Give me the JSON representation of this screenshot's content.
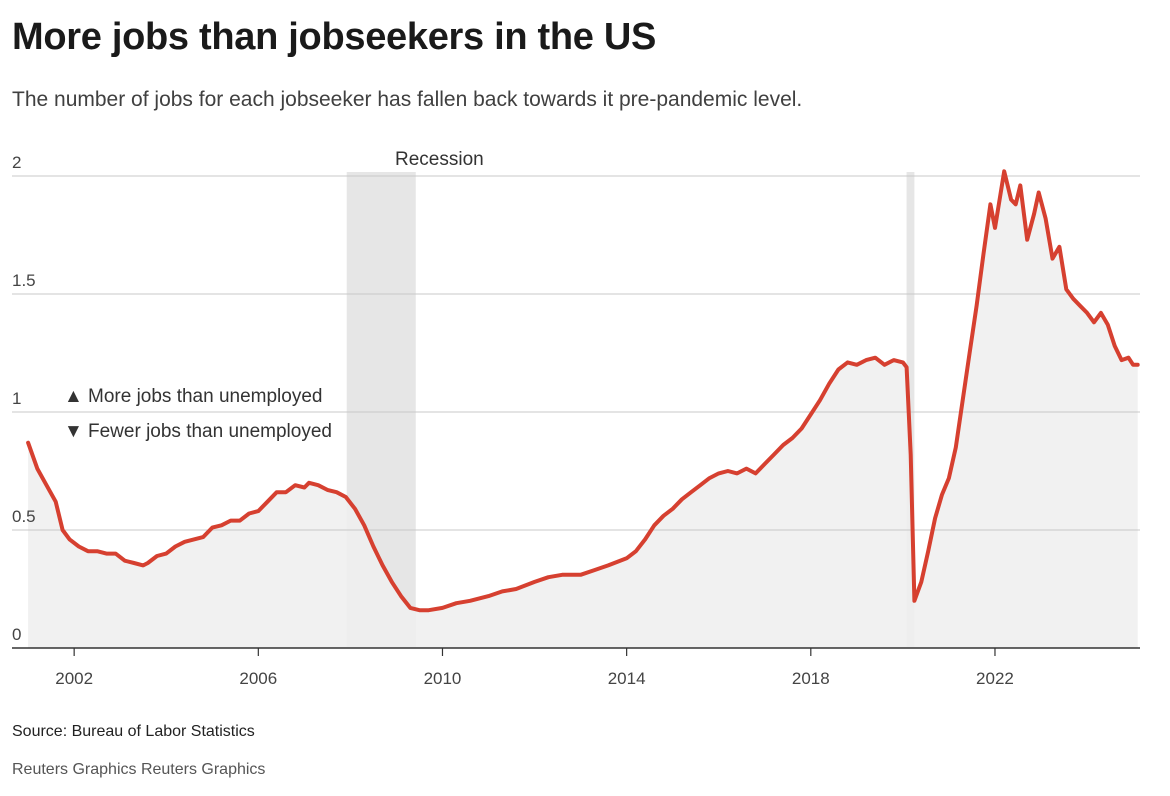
{
  "header": {
    "title": "More jobs than jobseekers in the US",
    "subtitle": "The number of jobs for each jobseeker has fallen back towards it pre-pandemic level."
  },
  "footer": {
    "source": "Source: Bureau of Labor Statistics",
    "credit": "Reuters Graphics Reuters Graphics"
  },
  "annotations": {
    "recession_label": "Recession",
    "legend_up": "More jobs than unemployed",
    "legend_down": "Fewer jobs than unemployed",
    "up_symbol": "▲",
    "down_symbol": "▼"
  },
  "colors": {
    "line": "#d64030",
    "area": "#efefef",
    "recession": "#e6e6e6",
    "grid": "#c8c8c8",
    "axis": "#333333"
  },
  "chart_data": {
    "type": "line",
    "title": "More jobs than jobseekers in the US",
    "subtitle": "The number of jobs for each jobseeker has fallen back towards it pre-pandemic level.",
    "xlabel": "",
    "ylabel": "",
    "xlim": [
      2000.65,
      2025.15
    ],
    "ylim": [
      0,
      2
    ],
    "x_ticks": [
      2002,
      2006,
      2010,
      2014,
      2018,
      2022
    ],
    "y_ticks": [
      0,
      0.5,
      1,
      1.5,
      2
    ],
    "y_tick_labels": [
      "0",
      "0.5",
      "1",
      "1.5",
      "2"
    ],
    "grid": "horizontal",
    "area_fill": true,
    "recessions": [
      {
        "start": 2007.92,
        "end": 2009.42,
        "label": "Recession"
      },
      {
        "start": 2020.08,
        "end": 2020.25,
        "label": ""
      }
    ],
    "series": [
      {
        "name": "",
        "x": [
          2001.0,
          2001.2,
          2001.4,
          2001.6,
          2001.75,
          2001.9,
          2002.1,
          2002.3,
          2002.5,
          2002.7,
          2002.9,
          2003.1,
          2003.3,
          2003.5,
          2003.6,
          2003.8,
          2004.0,
          2004.2,
          2004.4,
          2004.6,
          2004.8,
          2005.0,
          2005.2,
          2005.4,
          2005.6,
          2005.8,
          2006.0,
          2006.2,
          2006.4,
          2006.6,
          2006.8,
          2007.0,
          2007.1,
          2007.3,
          2007.5,
          2007.7,
          2007.9,
          2008.1,
          2008.3,
          2008.5,
          2008.7,
          2008.9,
          2009.1,
          2009.3,
          2009.5,
          2009.7,
          2010.0,
          2010.3,
          2010.6,
          2011.0,
          2011.3,
          2011.6,
          2012.0,
          2012.3,
          2012.6,
          2013.0,
          2013.3,
          2013.6,
          2014.0,
          2014.2,
          2014.4,
          2014.6,
          2014.8,
          2015.0,
          2015.2,
          2015.4,
          2015.6,
          2015.8,
          2016.0,
          2016.2,
          2016.4,
          2016.6,
          2016.8,
          2017.0,
          2017.2,
          2017.4,
          2017.6,
          2017.8,
          2018.0,
          2018.2,
          2018.4,
          2018.6,
          2018.8,
          2019.0,
          2019.2,
          2019.4,
          2019.6,
          2019.8,
          2020.0,
          2020.08,
          2020.17,
          2020.25,
          2020.4,
          2020.55,
          2020.7,
          2020.85,
          2021.0,
          2021.15,
          2021.3,
          2021.45,
          2021.6,
          2021.75,
          2021.9,
          2022.0,
          2022.2,
          2022.35,
          2022.45,
          2022.55,
          2022.7,
          2022.85,
          2022.95,
          2023.1,
          2023.25,
          2023.4,
          2023.55,
          2023.7,
          2023.85,
          2024.0,
          2024.15,
          2024.3,
          2024.45,
          2024.6,
          2024.75,
          2024.9,
          2025.0,
          2025.1
        ],
        "values": [
          0.87,
          0.76,
          0.69,
          0.62,
          0.5,
          0.46,
          0.43,
          0.41,
          0.41,
          0.4,
          0.4,
          0.37,
          0.36,
          0.35,
          0.36,
          0.39,
          0.4,
          0.43,
          0.45,
          0.46,
          0.47,
          0.51,
          0.52,
          0.54,
          0.54,
          0.57,
          0.58,
          0.62,
          0.66,
          0.66,
          0.69,
          0.68,
          0.7,
          0.69,
          0.67,
          0.66,
          0.64,
          0.59,
          0.52,
          0.43,
          0.35,
          0.28,
          0.22,
          0.17,
          0.16,
          0.16,
          0.17,
          0.19,
          0.2,
          0.22,
          0.24,
          0.25,
          0.28,
          0.3,
          0.31,
          0.31,
          0.33,
          0.35,
          0.38,
          0.41,
          0.46,
          0.52,
          0.56,
          0.59,
          0.63,
          0.66,
          0.69,
          0.72,
          0.74,
          0.75,
          0.74,
          0.76,
          0.74,
          0.78,
          0.82,
          0.86,
          0.89,
          0.93,
          0.99,
          1.05,
          1.12,
          1.18,
          1.21,
          1.2,
          1.22,
          1.23,
          1.2,
          1.22,
          1.21,
          1.19,
          0.82,
          0.2,
          0.28,
          0.41,
          0.55,
          0.65,
          0.72,
          0.85,
          1.05,
          1.25,
          1.45,
          1.67,
          1.88,
          1.78,
          2.02,
          1.9,
          1.88,
          1.96,
          1.73,
          1.84,
          1.93,
          1.82,
          1.65,
          1.7,
          1.52,
          1.48,
          1.45,
          1.42,
          1.38,
          1.42,
          1.37,
          1.28,
          1.22,
          1.23,
          1.2,
          1.2
        ]
      }
    ]
  }
}
